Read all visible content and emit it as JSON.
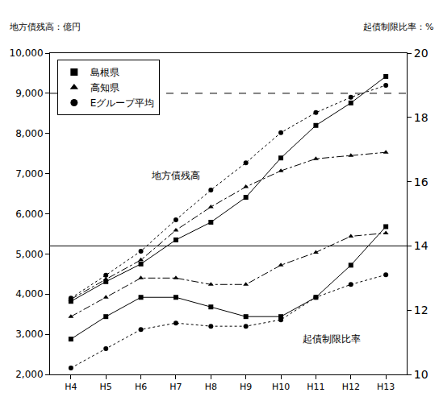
{
  "chart_data": {
    "type": "line",
    "y_label": "地方債残高：億円",
    "y2_label": "起債制限比率：%",
    "categories": [
      "H4",
      "H5",
      "H6",
      "H7",
      "H8",
      "H9",
      "H10",
      "H11",
      "H12",
      "H13"
    ],
    "series": [
      {
        "name": "島根県",
        "axis": "y",
        "color": "#000000",
        "marker": "square",
        "line_style": "solid",
        "values": [
          3820,
          4310,
          4750,
          5350,
          5790,
          6410,
          7390,
          8200,
          8760,
          9420
        ]
      },
      {
        "name": "高知県",
        "axis": "y",
        "color": "#000000",
        "marker": "triangle-up",
        "line_style": "dashdot",
        "values": [
          3870,
          4370,
          4850,
          5590,
          6170,
          6670,
          7070,
          7370,
          7450,
          7530
        ]
      },
      {
        "name": "Eグループ平均",
        "axis": "y",
        "color": "#000000",
        "marker": "circle",
        "line_style": "dot",
        "values": [
          3900,
          4470,
          5070,
          5850,
          6590,
          7270,
          8020,
          8520,
          8900,
          9200
        ]
      },
      {
        "name": "島根県",
        "axis": "y2",
        "color": "#000000",
        "marker": "square",
        "line_style": "solid",
        "values": [
          11.1,
          11.8,
          12.4,
          12.4,
          12.1,
          11.8,
          11.8,
          12.4,
          13.4,
          14.6
        ]
      },
      {
        "name": "高知県",
        "axis": "y2",
        "color": "#000000",
        "marker": "triangle-up",
        "line_style": "dashdot",
        "values": [
          11.8,
          12.4,
          13.0,
          13.0,
          12.8,
          12.8,
          13.4,
          13.8,
          14.3,
          14.4
        ]
      },
      {
        "name": "Eグループ平均",
        "axis": "y2",
        "color": "#000000",
        "marker": "circle",
        "line_style": "dot",
        "values": [
          10.2,
          10.8,
          11.4,
          11.6,
          11.5,
          11.5,
          11.7,
          12.4,
          12.8,
          13.1
        ]
      }
    ],
    "ylim": [
      2000,
      10000
    ],
    "yticks": [
      {
        "value": 2000,
        "label": "2,000"
      },
      {
        "value": 3000,
        "label": "3,000"
      },
      {
        "value": 4000,
        "label": "4,000"
      },
      {
        "value": 5000,
        "label": "5,000"
      },
      {
        "value": 6000,
        "label": "6,000"
      },
      {
        "value": 7000,
        "label": "7,000"
      },
      {
        "value": 8000,
        "label": "8,000"
      },
      {
        "value": 9000,
        "label": "9,000"
      },
      {
        "value": 10000,
        "label": "10,000"
      }
    ],
    "y2lim": [
      10,
      20
    ],
    "y2ticks": [
      10,
      12,
      14,
      16,
      18,
      20
    ],
    "reference_lines": [
      {
        "value": 9000,
        "axis": "y",
        "line_style": "dash"
      },
      {
        "value": 14,
        "axis": "y2",
        "line_style": "solid"
      }
    ],
    "annotations": [
      {
        "text": "地方債残高",
        "x": "H7",
        "y": 6950,
        "axis": "y"
      },
      {
        "text": "起債制限比率",
        "x": "H11",
        "y": 11.1,
        "axis": "y2"
      }
    ],
    "legend": "upper left",
    "grid": false
  }
}
